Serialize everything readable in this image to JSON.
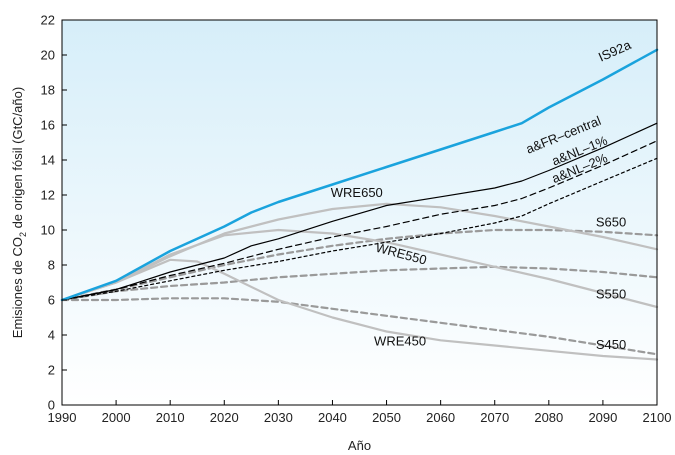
{
  "chart_data": {
    "type": "line",
    "xlabel": "Año",
    "ylabel_parts": [
      "Emisiones de CO",
      "2",
      " de origen fósil (GtC/año)"
    ],
    "xlim": [
      1990,
      2100
    ],
    "ylim": [
      0,
      22
    ],
    "x_ticks": [
      1990,
      2000,
      2010,
      2020,
      2030,
      2040,
      2050,
      2060,
      2070,
      2080,
      2090,
      2100
    ],
    "y_ticks": [
      0,
      2,
      4,
      6,
      8,
      10,
      12,
      14,
      16,
      18,
      20,
      22
    ],
    "grid": false,
    "legend": "none",
    "background_gradient": [
      "#d6eef9",
      "#ffffff"
    ],
    "series": [
      {
        "name": "IS92a",
        "color": "#1aa3dd",
        "style": "solid",
        "width": 2.5,
        "x": [
          1990,
          2000,
          2010,
          2020,
          2025,
          2030,
          2040,
          2050,
          2060,
          2070,
          2075,
          2080,
          2090,
          2100
        ],
        "y": [
          6.0,
          7.1,
          8.8,
          10.2,
          11.0,
          11.6,
          12.6,
          13.6,
          14.6,
          15.6,
          16.1,
          17.0,
          18.6,
          20.3
        ]
      },
      {
        "name": "a&FR-central",
        "color": "#000000",
        "style": "solid",
        "width": 1.2,
        "x": [
          1990,
          2000,
          2005,
          2010,
          2020,
          2025,
          2030,
          2040,
          2050,
          2060,
          2070,
          2075,
          2080,
          2090,
          2100
        ],
        "y": [
          6.0,
          6.6,
          7.1,
          7.6,
          8.4,
          9.1,
          9.5,
          10.5,
          11.4,
          11.9,
          12.4,
          12.8,
          13.4,
          14.7,
          16.1
        ]
      },
      {
        "name": "a&NL-1%",
        "color": "#000000",
        "style": "dashed",
        "width": 1.2,
        "x": [
          1990,
          2000,
          2010,
          2020,
          2030,
          2040,
          2050,
          2060,
          2070,
          2075,
          2080,
          2090,
          2100
        ],
        "y": [
          6.0,
          6.6,
          7.4,
          8.1,
          8.9,
          9.6,
          10.2,
          10.9,
          11.4,
          11.8,
          12.4,
          13.7,
          15.1
        ]
      },
      {
        "name": "a&NL-2%",
        "color": "#000000",
        "style": "dotted",
        "width": 1.2,
        "x": [
          1990,
          2000,
          2010,
          2020,
          2030,
          2040,
          2050,
          2060,
          2070,
          2075,
          2080,
          2090,
          2100
        ],
        "y": [
          6.0,
          6.5,
          7.1,
          7.7,
          8.2,
          8.8,
          9.3,
          9.8,
          10.4,
          10.8,
          11.5,
          12.8,
          14.1
        ]
      },
      {
        "name": "WRE650",
        "color": "#c0c0c0",
        "style": "solid",
        "width": 2.2,
        "x": [
          1990,
          2000,
          2010,
          2020,
          2030,
          2040,
          2050,
          2060,
          2070,
          2080,
          2090,
          2100
        ],
        "y": [
          6.0,
          7.0,
          8.5,
          9.8,
          10.6,
          11.2,
          11.5,
          11.3,
          10.8,
          10.2,
          9.6,
          8.9
        ]
      },
      {
        "name": "WRE550",
        "color": "#c0c0c0",
        "style": "solid",
        "width": 2.2,
        "x": [
          1990,
          2000,
          2010,
          2020,
          2030,
          2040,
          2050,
          2060,
          2070,
          2080,
          2090,
          2100
        ],
        "y": [
          6.0,
          7.0,
          8.6,
          9.7,
          10.0,
          9.8,
          9.3,
          8.6,
          7.9,
          7.2,
          6.4,
          5.6
        ]
      },
      {
        "name": "WRE450",
        "color": "#c0c0c0",
        "style": "solid",
        "width": 2.2,
        "x": [
          1990,
          2000,
          2010,
          2015,
          2020,
          2030,
          2040,
          2050,
          2060,
          2070,
          2080,
          2090,
          2100
        ],
        "y": [
          6.0,
          7.0,
          8.3,
          8.2,
          7.5,
          6.0,
          5.0,
          4.2,
          3.7,
          3.4,
          3.1,
          2.8,
          2.6
        ]
      },
      {
        "name": "S650",
        "color": "#9a9a9a",
        "style": "dashed",
        "width": 2.2,
        "x": [
          1990,
          2000,
          2010,
          2020,
          2030,
          2040,
          2050,
          2060,
          2070,
          2080,
          2090,
          2100
        ],
        "y": [
          6.0,
          6.6,
          7.3,
          8.0,
          8.6,
          9.1,
          9.5,
          9.8,
          10.0,
          10.0,
          9.9,
          9.7
        ]
      },
      {
        "name": "S550",
        "color": "#9a9a9a",
        "style": "dashed",
        "width": 2.2,
        "x": [
          1990,
          2000,
          2010,
          2020,
          2030,
          2040,
          2050,
          2060,
          2070,
          2080,
          2090,
          2100
        ],
        "y": [
          6.0,
          6.5,
          6.8,
          7.0,
          7.3,
          7.5,
          7.7,
          7.8,
          7.9,
          7.8,
          7.6,
          7.3
        ]
      },
      {
        "name": "S450",
        "color": "#9a9a9a",
        "style": "dashed",
        "width": 2.2,
        "x": [
          1990,
          2000,
          2010,
          2020,
          2030,
          2040,
          2050,
          2060,
          2070,
          2080,
          2090,
          2100
        ],
        "y": [
          6.0,
          6.0,
          6.1,
          6.1,
          5.9,
          5.5,
          5.1,
          4.7,
          4.3,
          3.9,
          3.4,
          2.9
        ]
      }
    ],
    "annotations": [
      {
        "text": "IS92a",
        "x": 2092.5,
        "y": 20.0,
        "rotate": -24
      },
      {
        "text": "a&FR–central",
        "x": 2083,
        "y": 15.2,
        "rotate": -22
      },
      {
        "text": "a&NL–1%",
        "x": 2086,
        "y": 14.3,
        "rotate": -22
      },
      {
        "text": "a&NL–2%",
        "x": 2086,
        "y": 13.3,
        "rotate": -22
      },
      {
        "text": "WRE650",
        "x": 2044.5,
        "y": 11.9,
        "rotate": 0
      },
      {
        "text": "S650",
        "x": 2091.5,
        "y": 10.2,
        "rotate": 0
      },
      {
        "text": "WRE550",
        "x": 2052.5,
        "y": 8.4,
        "rotate": 15
      },
      {
        "text": "S550",
        "x": 2091.5,
        "y": 6.1,
        "rotate": 0
      },
      {
        "text": "WRE450",
        "x": 2052.5,
        "y": 3.4,
        "rotate": 0
      },
      {
        "text": "S450",
        "x": 2091.5,
        "y": 3.2,
        "rotate": 0
      }
    ]
  }
}
